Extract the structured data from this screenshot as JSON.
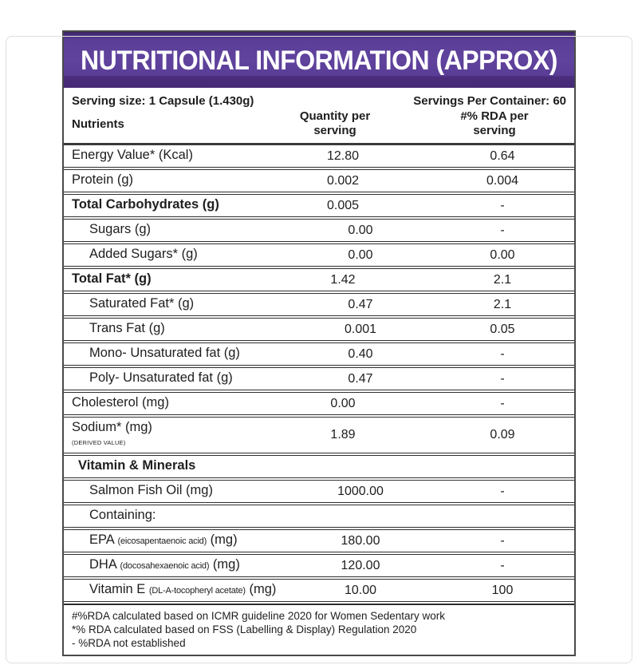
{
  "title": "NUTRITIONAL INFORMATION (APPROX)",
  "serving": {
    "size": "Serving size: 1 Capsule (1.430g)",
    "per_container": "Servings Per Container: 60"
  },
  "columns": {
    "nutrients": "Nutrients",
    "quantity": "Quantity per serving",
    "rda": "#% RDA per serving"
  },
  "rows": [
    {
      "label": "Energy Value* (Kcal)",
      "qty": "12.80",
      "rda": "0.64",
      "bold": false,
      "indent": 0
    },
    {
      "label": "Protein (g)",
      "qty": "0.002",
      "rda": "0.004",
      "bold": false,
      "indent": 0
    },
    {
      "label": "Total Carbohydrates (g)",
      "qty": "0.005",
      "rda": "-",
      "bold": true,
      "indent": 0
    },
    {
      "label": "Sugars (g)",
      "qty": "0.00",
      "rda": "-",
      "bold": false,
      "indent": 1
    },
    {
      "label": "Added Sugars* (g)",
      "qty": "0.00",
      "rda": "0.00",
      "bold": false,
      "indent": 1
    },
    {
      "label": "Total Fat* (g)",
      "qty": "1.42",
      "rda": "2.1",
      "bold": true,
      "indent": 0
    },
    {
      "label": "Saturated Fat* (g)",
      "qty": "0.47",
      "rda": "2.1",
      "bold": false,
      "indent": 1
    },
    {
      "label": "Trans Fat (g)",
      "qty": "0.001",
      "rda": "0.05",
      "bold": false,
      "indent": 1
    },
    {
      "label": "Mono- Unsaturated fat (g)",
      "qty": "0.40",
      "rda": "-",
      "bold": false,
      "indent": 1
    },
    {
      "label": "Poly- Unsaturated fat (g)",
      "qty": "0.47",
      "rda": "-",
      "bold": false,
      "indent": 1
    },
    {
      "label": "Cholesterol (mg)",
      "qty": "0.00",
      "rda": "-",
      "bold": false,
      "indent": 0
    },
    {
      "label": "Sodium* (mg)",
      "note": "(DERIVED VALUE)",
      "qty": "1.89",
      "rda": "0.09",
      "bold": false,
      "indent": 0
    },
    {
      "label": "Vitamin & Minerals",
      "qty": "",
      "rda": "",
      "bold": true,
      "indent": 2
    },
    {
      "label": "Salmon Fish Oil (mg)",
      "qty": "1000.00",
      "rda": "-",
      "bold": false,
      "indent": 1
    },
    {
      "label": "Containing:",
      "qty": "",
      "rda": "",
      "bold": false,
      "indent": 1
    },
    {
      "label": "EPA",
      "sub": "(eicosapentaenoic acid)",
      "suffix": "(mg)",
      "qty": "180.00",
      "rda": "-",
      "bold": false,
      "indent": 1
    },
    {
      "label": "DHA",
      "sub": "(docosahexaenoic acid)",
      "suffix": "(mg)",
      "qty": "120.00",
      "rda": "-",
      "bold": false,
      "indent": 1
    },
    {
      "label": "Vitamin E",
      "sub": "(DL-A-tocopheryl acetate)",
      "suffix": "(mg)",
      "qty": "10.00",
      "rda": "100",
      "bold": false,
      "indent": 1
    }
  ],
  "footnotes": [
    "#%RDA calculated based on ICMR guideline 2020 for Women Sedentary work",
    "*% RDA calculated based on FSS (Labelling & Display) Regulation 2020",
    "- %RDA not established"
  ],
  "colors": {
    "banner_purple": "#5b3e98",
    "banner_dark_strip": "#4a2c7c",
    "border_dark": "#2f2f2f",
    "text": "#1e1e1e"
  }
}
